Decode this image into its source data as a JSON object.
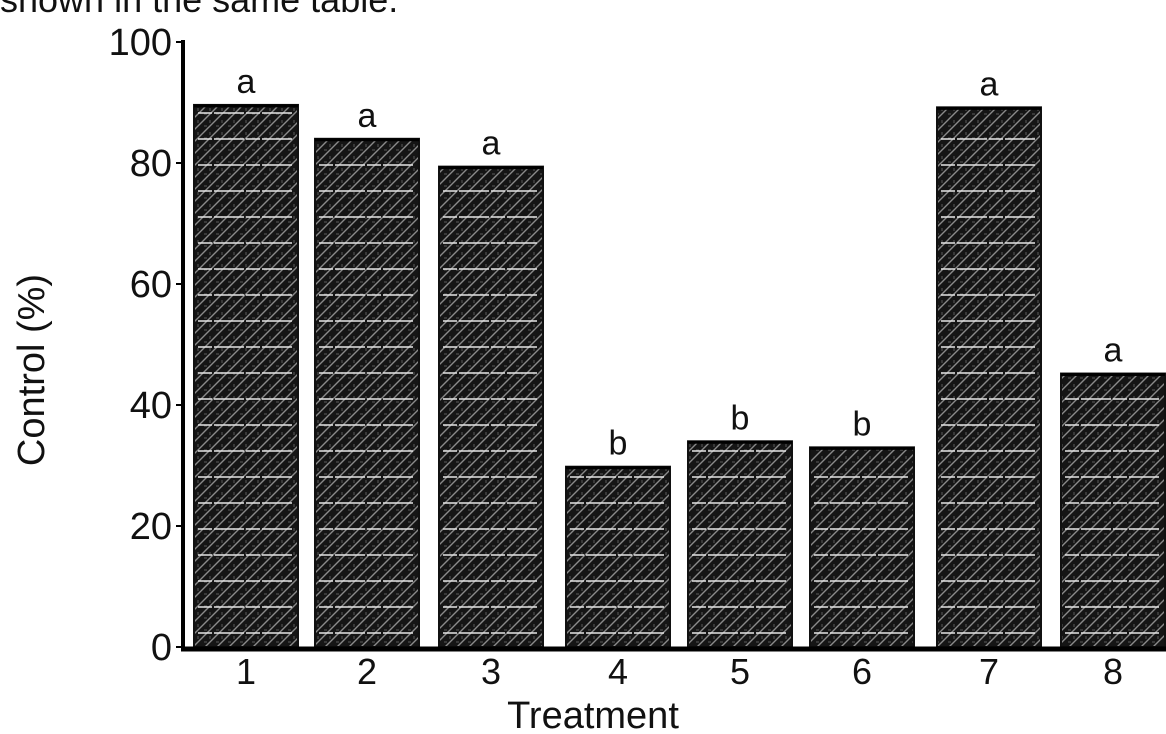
{
  "chart_data": {
    "type": "bar",
    "title": "",
    "top_text_fragment": "shown in the same table.",
    "xlabel": "Treatment",
    "ylabel": "Control (%)",
    "ylim": [
      0,
      100
    ],
    "yticks": [
      0,
      20,
      40,
      60,
      80,
      100
    ],
    "categories": [
      "1",
      "2",
      "3",
      "4",
      "5",
      "6",
      "7",
      "8"
    ],
    "values": [
      89.6,
      84.0,
      79.4,
      29.8,
      34.0,
      33.0,
      89.2,
      45.2
    ],
    "significance_letters": [
      "a",
      "a",
      "a",
      "b",
      "b",
      "b",
      "a",
      "a"
    ],
    "grid": false,
    "legend": "none",
    "colors": {
      "bar_fill": "#151515",
      "bar_hatch": "#8a8a8a",
      "bar_line": "#e6e6e6",
      "axis": "#000000"
    }
  }
}
